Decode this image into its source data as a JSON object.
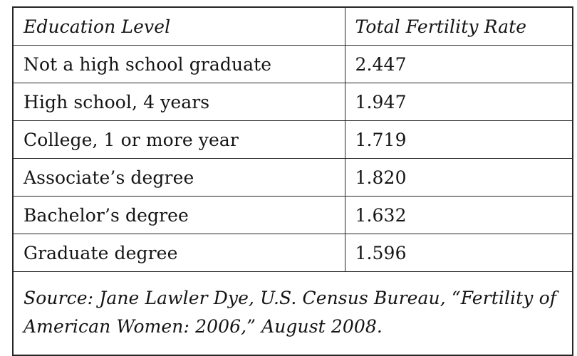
{
  "chart_data": {
    "type": "table",
    "title": "",
    "columns": [
      "Education Level",
      "Total Fertility Rate"
    ],
    "categories": [
      "Not a high school graduate",
      "High school, 4 years",
      "College, 1 or more year",
      "Associate’s degree",
      "Bachelor’s degree",
      "Graduate degree"
    ],
    "values": [
      2.447,
      1.947,
      1.719,
      1.82,
      1.632,
      1.596
    ],
    "source": "Source: Jane Lawler Dye, U.S. Census Bureau, “Fertility of American Women: 2006,” August 2008."
  },
  "table": {
    "header": {
      "col1": "Education Level",
      "col2": "Total Fertility Rate"
    },
    "rows": [
      {
        "label": "Not a high school graduate",
        "value": "2.447"
      },
      {
        "label": "High school, 4 years",
        "value": "1.947"
      },
      {
        "label": "College, 1 or more year",
        "value": "1.719"
      },
      {
        "label": "Associate’s degree",
        "value": "1.820"
      },
      {
        "label": "Bachelor’s degree",
        "value": "1.632"
      },
      {
        "label": "Graduate degree",
        "value": "1.596"
      }
    ],
    "source_note": "Source: Jane Lawler Dye, U.S. Census Bureau, “Fertility of American Women: 2006,” August 2008."
  },
  "colors": {
    "background": "#ffffff",
    "border": "#262626",
    "text": "#141414"
  }
}
